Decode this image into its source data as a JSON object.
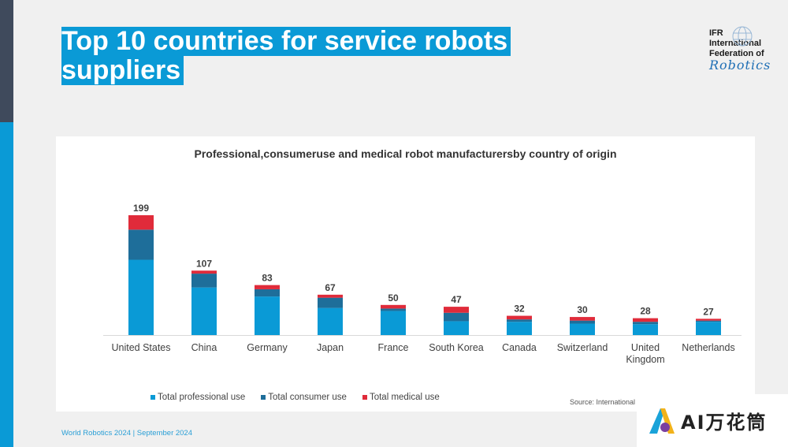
{
  "title": {
    "line1": "Top 10 countries for service robots",
    "line2": "suppliers"
  },
  "logo": {
    "line1": "IFR",
    "line2": "International",
    "line3": "Federation of",
    "script": "Robotics"
  },
  "footer": "World Robotics 2024  | September 2024",
  "source": "Source: International Federation of Robotics",
  "watermark": "AI万花筒",
  "colors": {
    "professional": "#0a9ad6",
    "consumer": "#1e6e9a",
    "medical": "#e02b3a"
  },
  "chart_data": {
    "type": "bar",
    "stacked": true,
    "title": "Professional,consumeruse and medical robot manufacturersby country of origin",
    "categories": [
      "United States",
      "China",
      "Germany",
      "Japan",
      "France",
      "South Korea",
      "Canada",
      "Switzerland",
      "United Kingdom",
      "Netherlands"
    ],
    "category_lines": [
      [
        "United States"
      ],
      [
        "China"
      ],
      [
        "Germany"
      ],
      [
        "Japan"
      ],
      [
        "France"
      ],
      [
        "South Korea"
      ],
      [
        "Canada"
      ],
      [
        "Switzerland"
      ],
      [
        "United",
        "Kingdom"
      ],
      [
        "Netherlands"
      ]
    ],
    "series": [
      {
        "name": "Total professional use",
        "values": [
          125,
          79,
          64,
          45,
          40,
          23,
          22,
          19,
          18,
          22
        ]
      },
      {
        "name": "Total consumer use",
        "values": [
          50,
          23,
          12,
          17,
          4,
          14,
          4,
          5,
          4,
          2
        ]
      },
      {
        "name": "Total medical use",
        "values": [
          24,
          5,
          7,
          5,
          6,
          10,
          6,
          6,
          6,
          3
        ]
      }
    ],
    "totals": [
      199,
      107,
      83,
      67,
      50,
      47,
      32,
      30,
      28,
      27
    ],
    "ylim": [
      0,
      199
    ],
    "grid": false,
    "legend_position": "bottom-left"
  }
}
